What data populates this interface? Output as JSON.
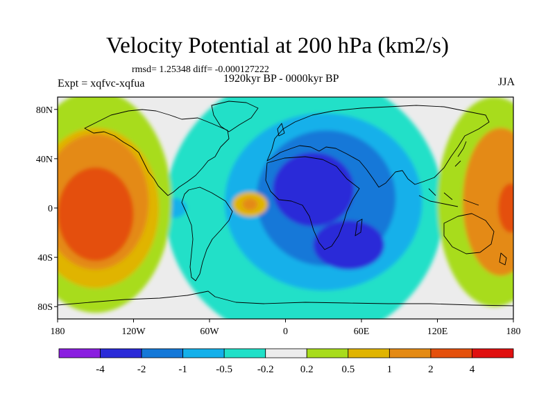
{
  "title": "Velocity Potential at 200 hPa (km2/s)",
  "stats_text": "rmsd= 1.25348 diff= -0.000127222",
  "left_label": "Expt = xqfvc-xqfua",
  "center_label": "1920kyr BP - 0000kyr BP",
  "right_label": "JJA",
  "y_ticks": [
    {
      "lat": 80,
      "label": "80N"
    },
    {
      "lat": 40,
      "label": "40N"
    },
    {
      "lat": 0,
      "label": "0"
    },
    {
      "lat": -40,
      "label": "40S"
    },
    {
      "lat": -80,
      "label": "80S"
    }
  ],
  "x_ticks": [
    {
      "lon": -180,
      "label": "180"
    },
    {
      "lon": -120,
      "label": "120W"
    },
    {
      "lon": -60,
      "label": "60W"
    },
    {
      "lon": 0,
      "label": "0"
    },
    {
      "lon": 60,
      "label": "60E"
    },
    {
      "lon": 120,
      "label": "120E"
    },
    {
      "lon": 180,
      "label": "180"
    }
  ],
  "colorbar": {
    "colors": [
      "#8a1ee0",
      "#2a2ad8",
      "#1478d8",
      "#14b0ea",
      "#20e0c8",
      "#ececec",
      "#a8dc1c",
      "#e0b400",
      "#e48a14",
      "#e4500c",
      "#e01010"
    ],
    "labels": [
      "-4",
      "-2",
      "-1",
      "-0.5",
      "-0.2",
      "0.2",
      "0.5",
      "1",
      "2",
      "4"
    ]
  },
  "field_blobs": [
    {
      "lon": 15,
      "lat": 0,
      "rlon": 110,
      "rlat": 110,
      "color": "#20e0c8"
    },
    {
      "lon": 30,
      "lat": 5,
      "rlon": 78,
      "rlat": 72,
      "color": "#14b0ea"
    },
    {
      "lon": 32,
      "lat": 8,
      "rlon": 55,
      "rlat": 55,
      "color": "#1478d8"
    },
    {
      "lon": 22,
      "lat": 15,
      "rlon": 32,
      "rlat": 30,
      "color": "#2a2ad8"
    },
    {
      "lon": 50,
      "lat": -30,
      "rlon": 28,
      "rlat": 20,
      "color": "#2a2ad8"
    },
    {
      "lon": -90,
      "lat": 0,
      "rlon": 18,
      "rlat": 18,
      "color": "#20e0c8"
    },
    {
      "lon": -88,
      "lat": 0,
      "rlon": 10,
      "rlat": 8,
      "color": "#14b0ea"
    },
    {
      "lon": -28,
      "lat": 3,
      "rlon": 14,
      "rlat": 10,
      "color": "#e0b400"
    },
    {
      "lon": -28,
      "lat": 3,
      "rlon": 6,
      "rlat": 5,
      "color": "#e48a14"
    },
    {
      "lon": -150,
      "lat": 5,
      "rlon": 60,
      "rlat": 90,
      "color": "#a8dc1c"
    },
    {
      "lon": -150,
      "lat": 0,
      "rlon": 50,
      "rlat": 65,
      "color": "#e0b400"
    },
    {
      "lon": -150,
      "lat": 5,
      "rlon": 42,
      "rlat": 55,
      "color": "#e48a14"
    },
    {
      "lon": -150,
      "lat": -5,
      "rlon": 30,
      "rlat": 38,
      "color": "#e4500c"
    },
    {
      "lon": 165,
      "lat": 5,
      "rlon": 45,
      "rlat": 85,
      "color": "#a8dc1c"
    },
    {
      "lon": 170,
      "lat": 5,
      "rlon": 30,
      "rlat": 60,
      "color": "#e48a14"
    },
    {
      "lon": 178,
      "lat": 0,
      "rlon": 10,
      "rlat": 20,
      "color": "#e4500c"
    }
  ]
}
